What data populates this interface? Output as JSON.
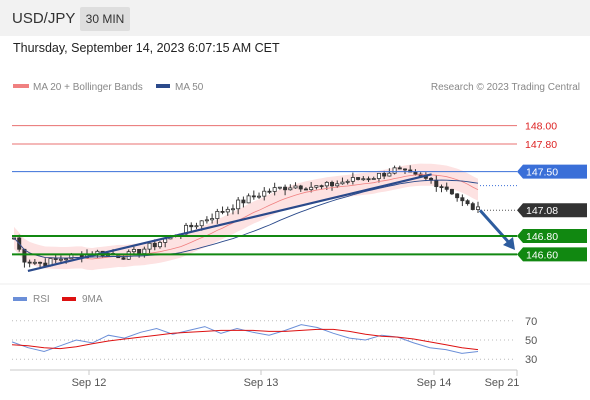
{
  "header": {
    "symbol": "USD/JPY",
    "timeframe": "30 MIN",
    "timestamp": "Thursday, September 14, 2023 6:07:15 AM CET"
  },
  "legend": {
    "ma20_label": "MA 20 + Bollinger Bands",
    "ma50_label": "MA 50",
    "copyright": "Research © 2023 Trading Central",
    "rsi_label": "RSI",
    "rsi_ma_label": "9MA"
  },
  "colors": {
    "bollinger_line": "#f08080",
    "bollinger_fill": "#fde2e2",
    "ma50": "#2b4a8b",
    "resistance": "#e87070",
    "pivot": "#3a6fd8",
    "support": "#118811",
    "current_price": "#333333",
    "arrow": "#2d5c9e",
    "rsi": "#6b8fd8",
    "rsi_ma": "#dd1111"
  },
  "chart_data": [
    {
      "type": "candlestick",
      "title": "USD/JPY 30 MIN",
      "ylim": [
        146.3,
        148.3
      ],
      "x_ticks": [
        "Sep 12",
        "Sep 13",
        "Sep 14",
        "Sep 21"
      ],
      "levels": [
        {
          "value": 148.0,
          "label": "148.00",
          "kind": "resistance"
        },
        {
          "value": 147.8,
          "label": "147.80",
          "kind": "resistance"
        },
        {
          "value": 147.5,
          "label": "147.50",
          "kind": "pivot"
        },
        {
          "value": 147.08,
          "label": "147.08",
          "kind": "current"
        },
        {
          "value": 146.8,
          "label": "146.80",
          "kind": "support"
        },
        {
          "value": 146.6,
          "label": "146.60",
          "kind": "support"
        }
      ],
      "approx_close_path": [
        {
          "t": 0.0,
          "v": 146.78
        },
        {
          "t": 0.02,
          "v": 146.55
        },
        {
          "t": 0.06,
          "v": 146.5
        },
        {
          "t": 0.12,
          "v": 146.58
        },
        {
          "t": 0.18,
          "v": 146.62
        },
        {
          "t": 0.24,
          "v": 146.58
        },
        {
          "t": 0.3,
          "v": 146.7
        },
        {
          "t": 0.36,
          "v": 146.85
        },
        {
          "t": 0.42,
          "v": 147.0
        },
        {
          "t": 0.48,
          "v": 147.15
        },
        {
          "t": 0.54,
          "v": 147.28
        },
        {
          "t": 0.6,
          "v": 147.35
        },
        {
          "t": 0.66,
          "v": 147.33
        },
        {
          "t": 0.72,
          "v": 147.4
        },
        {
          "t": 0.78,
          "v": 147.45
        },
        {
          "t": 0.82,
          "v": 147.52
        },
        {
          "t": 0.86,
          "v": 147.45
        },
        {
          "t": 0.9,
          "v": 147.4
        },
        {
          "t": 0.94,
          "v": 147.3
        },
        {
          "t": 0.97,
          "v": 147.15
        },
        {
          "t": 1.0,
          "v": 147.08
        }
      ],
      "forecast": {
        "from": 147.08,
        "to": 146.8,
        "direction": "down"
      }
    },
    {
      "type": "line",
      "title": "RSI",
      "ylim": [
        25,
        75
      ],
      "y_ticks": [
        70,
        50,
        30
      ],
      "series": [
        {
          "name": "RSI",
          "values": [
            48,
            42,
            38,
            44,
            50,
            47,
            55,
            52,
            58,
            62,
            56,
            60,
            64,
            57,
            62,
            58,
            55,
            60,
            66,
            63,
            57,
            52,
            50,
            55,
            53,
            47,
            42,
            40,
            36,
            38
          ]
        },
        {
          "name": "9MA",
          "values": [
            45,
            44,
            42,
            41,
            43,
            46,
            49,
            51,
            53,
            55,
            57,
            58,
            59,
            60,
            60,
            60,
            59,
            59,
            60,
            61,
            61,
            59,
            56,
            54,
            53,
            51,
            48,
            45,
            42,
            40
          ]
        }
      ]
    }
  ]
}
